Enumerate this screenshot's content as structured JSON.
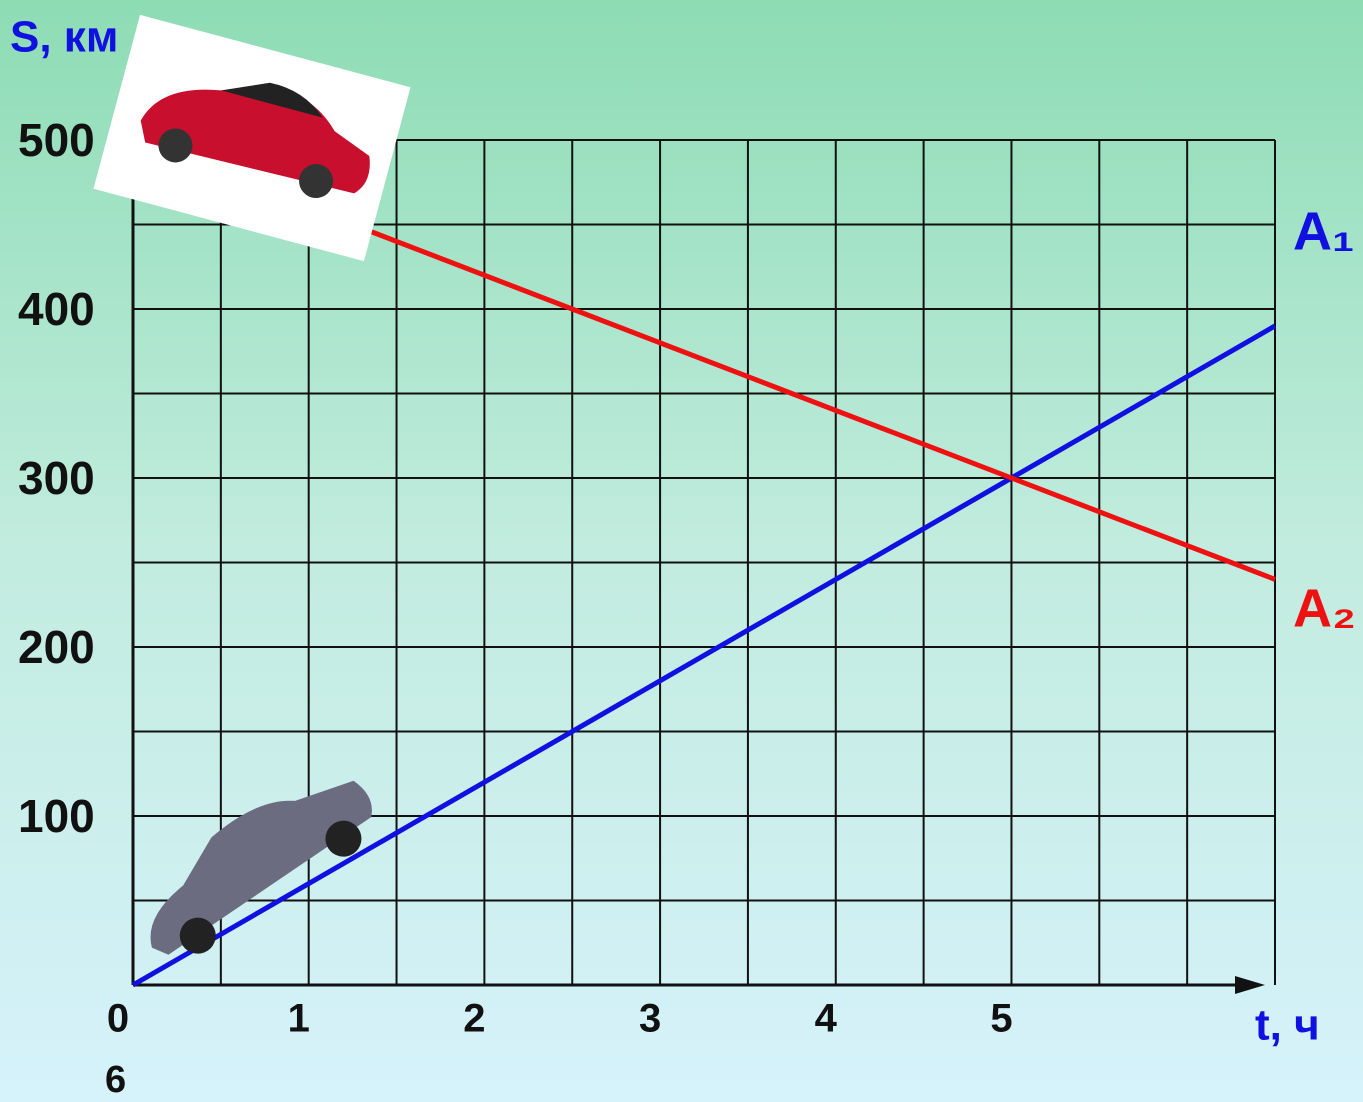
{
  "chart_data": {
    "type": "line",
    "y_label": "S, км",
    "x_label": "t, ч",
    "note": "6",
    "x": [
      0,
      6.5
    ],
    "series": [
      {
        "name": "A₁",
        "color": "#1010e0",
        "values": [
          0,
          390
        ]
      },
      {
        "name": "A₂",
        "color": "#ee1111",
        "values": [
          500,
          240
        ]
      }
    ],
    "xlim": [
      0,
      6.5
    ],
    "ylim": [
      0,
      500
    ],
    "xticks": [
      0,
      1,
      2,
      3,
      4,
      5
    ],
    "yticks": [
      100,
      200,
      300,
      400,
      500
    ],
    "grid_x": [
      0.5,
      1.5,
      2.5,
      3.5,
      4.5,
      5.5,
      6,
      6.5
    ],
    "grid_y": [
      50,
      150,
      250,
      350,
      450
    ],
    "grid": true
  }
}
